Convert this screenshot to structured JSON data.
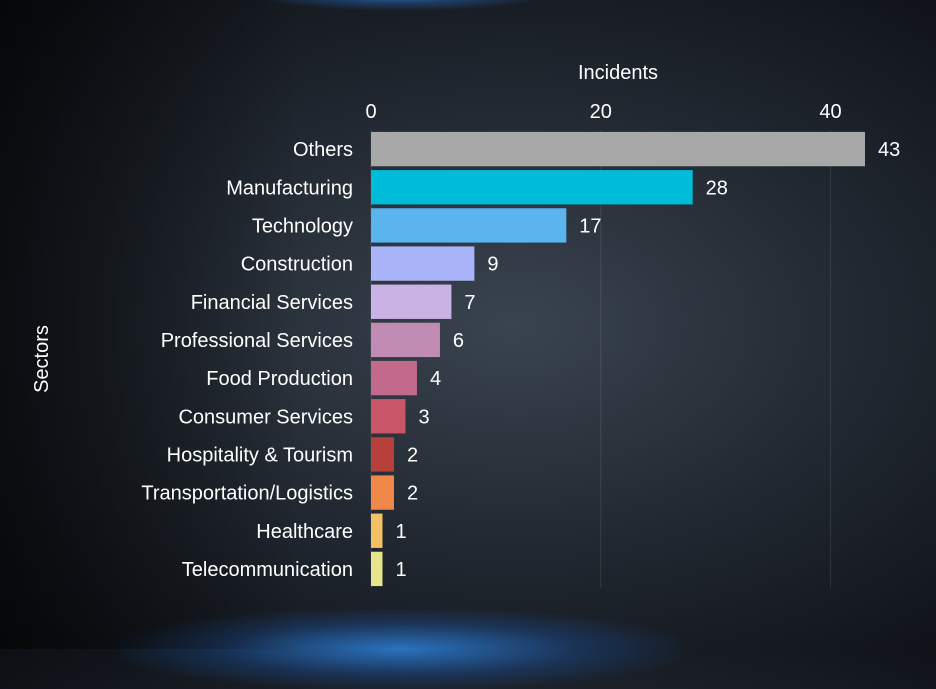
{
  "chart_data": {
    "type": "bar",
    "orientation": "horizontal",
    "xlabel": "Incidents",
    "ylabel": "Sectors",
    "xticks": [
      0,
      20,
      40
    ],
    "xlim": [
      0,
      46
    ],
    "grid": true,
    "categories": [
      "Others",
      "Manufacturing",
      "Technology",
      "Construction",
      "Financial Services",
      "Professional Services",
      "Food Production",
      "Consumer Services",
      "Hospitality & Tourism",
      "Transportation/Logistics",
      "Healthcare",
      "Telecommunication"
    ],
    "values": [
      43,
      28,
      17,
      9,
      7,
      6,
      4,
      3,
      2,
      2,
      1,
      1
    ],
    "colors": [
      "#a8a8a8",
      "#00bcd8",
      "#5ab4ee",
      "#aab4f8",
      "#c9b2e4",
      "#c08cb4",
      "#c26a8c",
      "#c75668",
      "#b8403c",
      "#f0884a",
      "#f4c064",
      "#e8e48c"
    ]
  }
}
